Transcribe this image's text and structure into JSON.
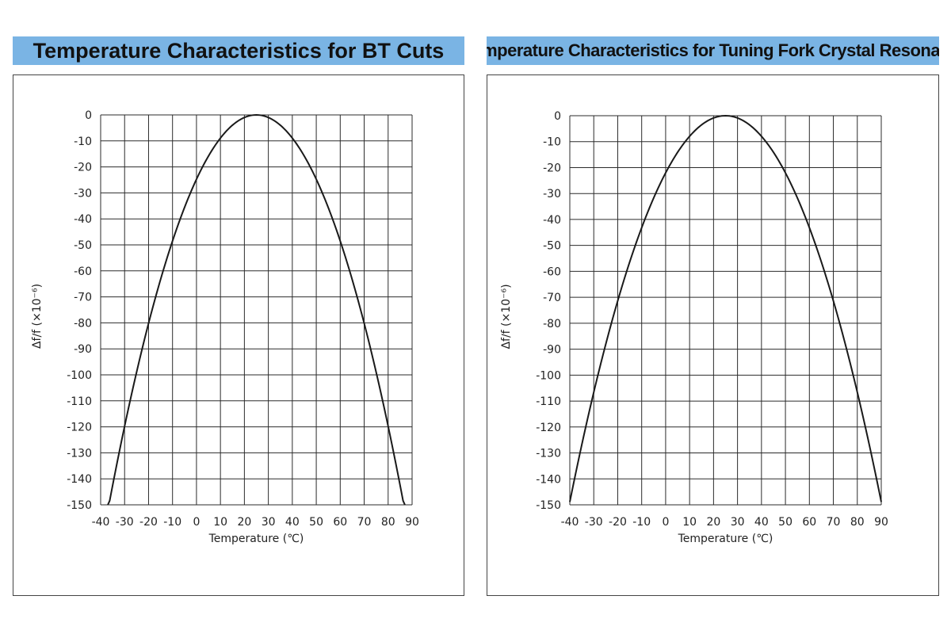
{
  "colors": {
    "title_background": "#7ab4e4",
    "curve": "#1a1a1a",
    "grid": "#2b2b2b"
  },
  "chart_data": [
    {
      "type": "line",
      "title": "Temperature Characteristics for BT Cuts",
      "xlabel": "Temperature (℃)",
      "ylabel": "Δf∕f (×10⁻⁶)",
      "xlim": [
        -40,
        90
      ],
      "ylim": [
        -150,
        0
      ],
      "xticks": [
        "-40",
        "-30",
        "-20",
        "-10",
        "0",
        "10",
        "20",
        "30",
        "40",
        "50",
        "60",
        "70",
        "80",
        "90"
      ],
      "yticks": [
        "0",
        "-10",
        "-20",
        "-30",
        "-40",
        "-50",
        "-60",
        "-70",
        "-80",
        "-90",
        "-100",
        "-110",
        "-120",
        "-130",
        "-140",
        "-150"
      ],
      "grid": true,
      "series": [
        {
          "x": [
            -37,
            -30,
            -20,
            -10,
            0,
            10,
            20,
            25,
            30,
            40,
            50,
            60,
            70,
            80,
            87
          ],
          "y": [
            -150,
            -120,
            -83,
            -50,
            -25,
            -9,
            -1,
            0,
            -1,
            -9,
            -25,
            -50,
            -83,
            -120,
            -150
          ]
        }
      ]
    },
    {
      "type": "line",
      "title": "Temperature Characteristics for Tuning Fork Crystal Resonator",
      "xlabel": "Temperature (℃)",
      "ylabel": "Δf∕f (×10⁻⁶)",
      "xlim": [
        -40,
        90
      ],
      "ylim": [
        -150,
        0
      ],
      "xticks": [
        "-40",
        "-30",
        "-20",
        "-10",
        "0",
        "10",
        "20",
        "30",
        "40",
        "50",
        "60",
        "70",
        "80",
        "90"
      ],
      "yticks": [
        "0",
        "-10",
        "-20",
        "-30",
        "-40",
        "-50",
        "-60",
        "-70",
        "-80",
        "-90",
        "-100",
        "-110",
        "-120",
        "-130",
        "-140",
        "-150"
      ],
      "grid": true,
      "series": [
        {
          "x": [
            -40,
            -30,
            -20,
            -10,
            0,
            10,
            20,
            25,
            30,
            40,
            50,
            60,
            70,
            80,
            90
          ],
          "y": [
            -149,
            -107,
            -71,
            -43,
            -21,
            -7,
            -1,
            0,
            -1,
            -7,
            -21,
            -43,
            -71,
            -107,
            -149
          ]
        }
      ]
    }
  ]
}
